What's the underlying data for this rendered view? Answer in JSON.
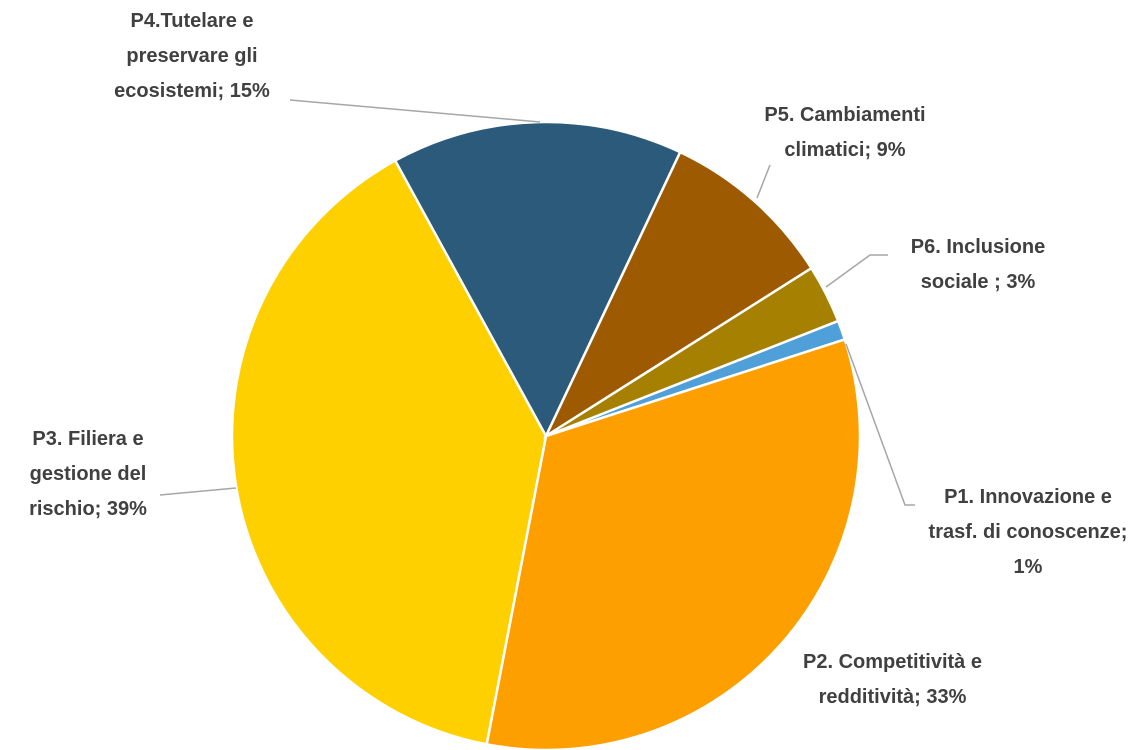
{
  "chart_data": {
    "type": "pie",
    "values": [
      1,
      33,
      39,
      15,
      9,
      3
    ],
    "value_labels": [
      "P1. Innovazione e trasf. di conoscenze; 1%",
      "P2. Competitività e redditività; 33%",
      "P3. Filiera e gestione del rischio; 39%",
      "P4.Tutelare e preservare gli ecosistemi; 15%",
      "P5. Cambiamenti climatici; 9%",
      "P6. Inclusione sociale ; 3%"
    ],
    "colors": [
      "#4f9fd8",
      "#fe9f00",
      "#fed000",
      "#2b5a7a",
      "#9e5a00",
      "#a68000"
    ]
  }
}
